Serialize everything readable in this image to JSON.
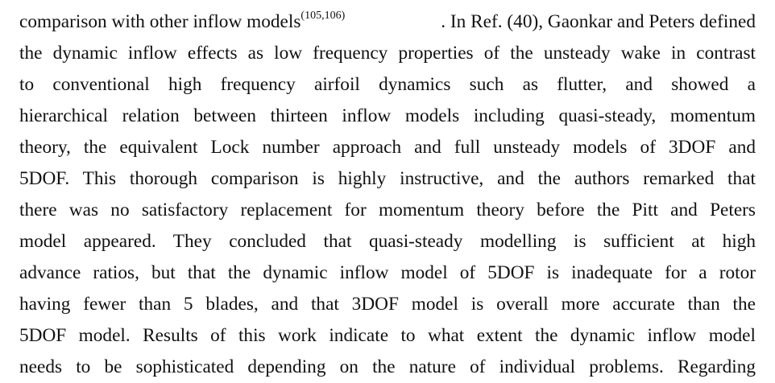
{
  "paragraph": {
    "line_1_before_ref": "comparison with other inflow models",
    "line_1_ref": "(105,106)",
    "line_1_after_ref": ". In Ref. (40), Gaonkar and Peters defined",
    "lines": [
      "the dynamic inflow effects as low frequency properties of the unsteady wake in contrast",
      "to conventional high frequency airfoil dynamics such as flutter, and showed a",
      "hierarchical relation between thirteen inflow models including quasi-steady, momentum",
      "theory, the equivalent Lock number approach and full unsteady models of 3DOF and",
      "5DOF. This thorough comparison is highly instructive, and the authors remarked that",
      "there was no satisfactory replacement for momentum theory before the Pitt and Peters",
      "model appeared. They concluded that quasi-steady modelling is sufficient at high",
      "advance ratios, but that the dynamic inflow model of 5DOF is inadequate for a rotor",
      "having fewer than 5 blades, and that 3DOF model is overall more accurate than the",
      "5DOF model. Results of this work indicate to what extent the dynamic inflow model",
      "needs to be sophisticated depending on the nature of individual problems. Regarding"
    ]
  }
}
